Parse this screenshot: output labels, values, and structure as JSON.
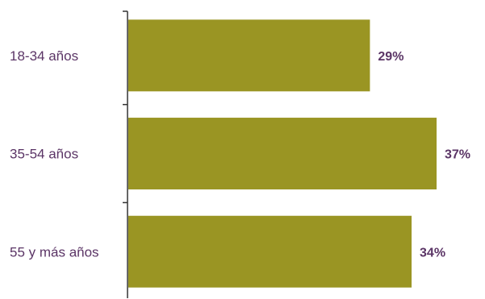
{
  "chart_data": {
    "type": "bar",
    "orientation": "horizontal",
    "categories": [
      "18-34 años",
      "35-54 años",
      "55 y más años"
    ],
    "values": [
      29,
      37,
      34
    ],
    "value_labels": [
      "29%",
      "37%",
      "34%"
    ],
    "unit": "%",
    "title": "",
    "xlabel": "",
    "ylabel": "",
    "xlim": [
      0,
      37
    ],
    "grid": false,
    "legend": "none"
  },
  "colors": {
    "bar": "#9a9523",
    "label_text": "#5b3566",
    "value_text": "#5b3566",
    "axis": "#333333"
  }
}
